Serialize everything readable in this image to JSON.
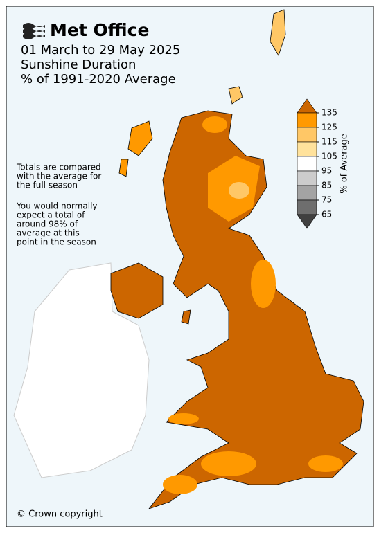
{
  "header": {
    "logo": "Met Office",
    "title_lines": [
      "01 March to 29 May 2025",
      "Sunshine Duration",
      "% of 1991-2020 Average"
    ]
  },
  "notes": [
    [
      "Totals are compared",
      "with the average for",
      "the full season"
    ],
    [
      "You would normally",
      "expect a total of",
      "around 98% of",
      "average at this",
      "point in the season"
    ]
  ],
  "legend": {
    "label": "% of Average",
    "ticks": [
      135,
      125,
      115,
      105,
      95,
      85,
      75,
      65
    ],
    "colors": [
      "#cc6600",
      "#ff9900",
      "#ffc766",
      "#ffe29c",
      "#ffffff",
      "#cccccc",
      "#a3a3a3",
      "#6e6e6e",
      "#404040"
    ]
  },
  "footer": {
    "copyright": "© Crown copyright"
  }
}
